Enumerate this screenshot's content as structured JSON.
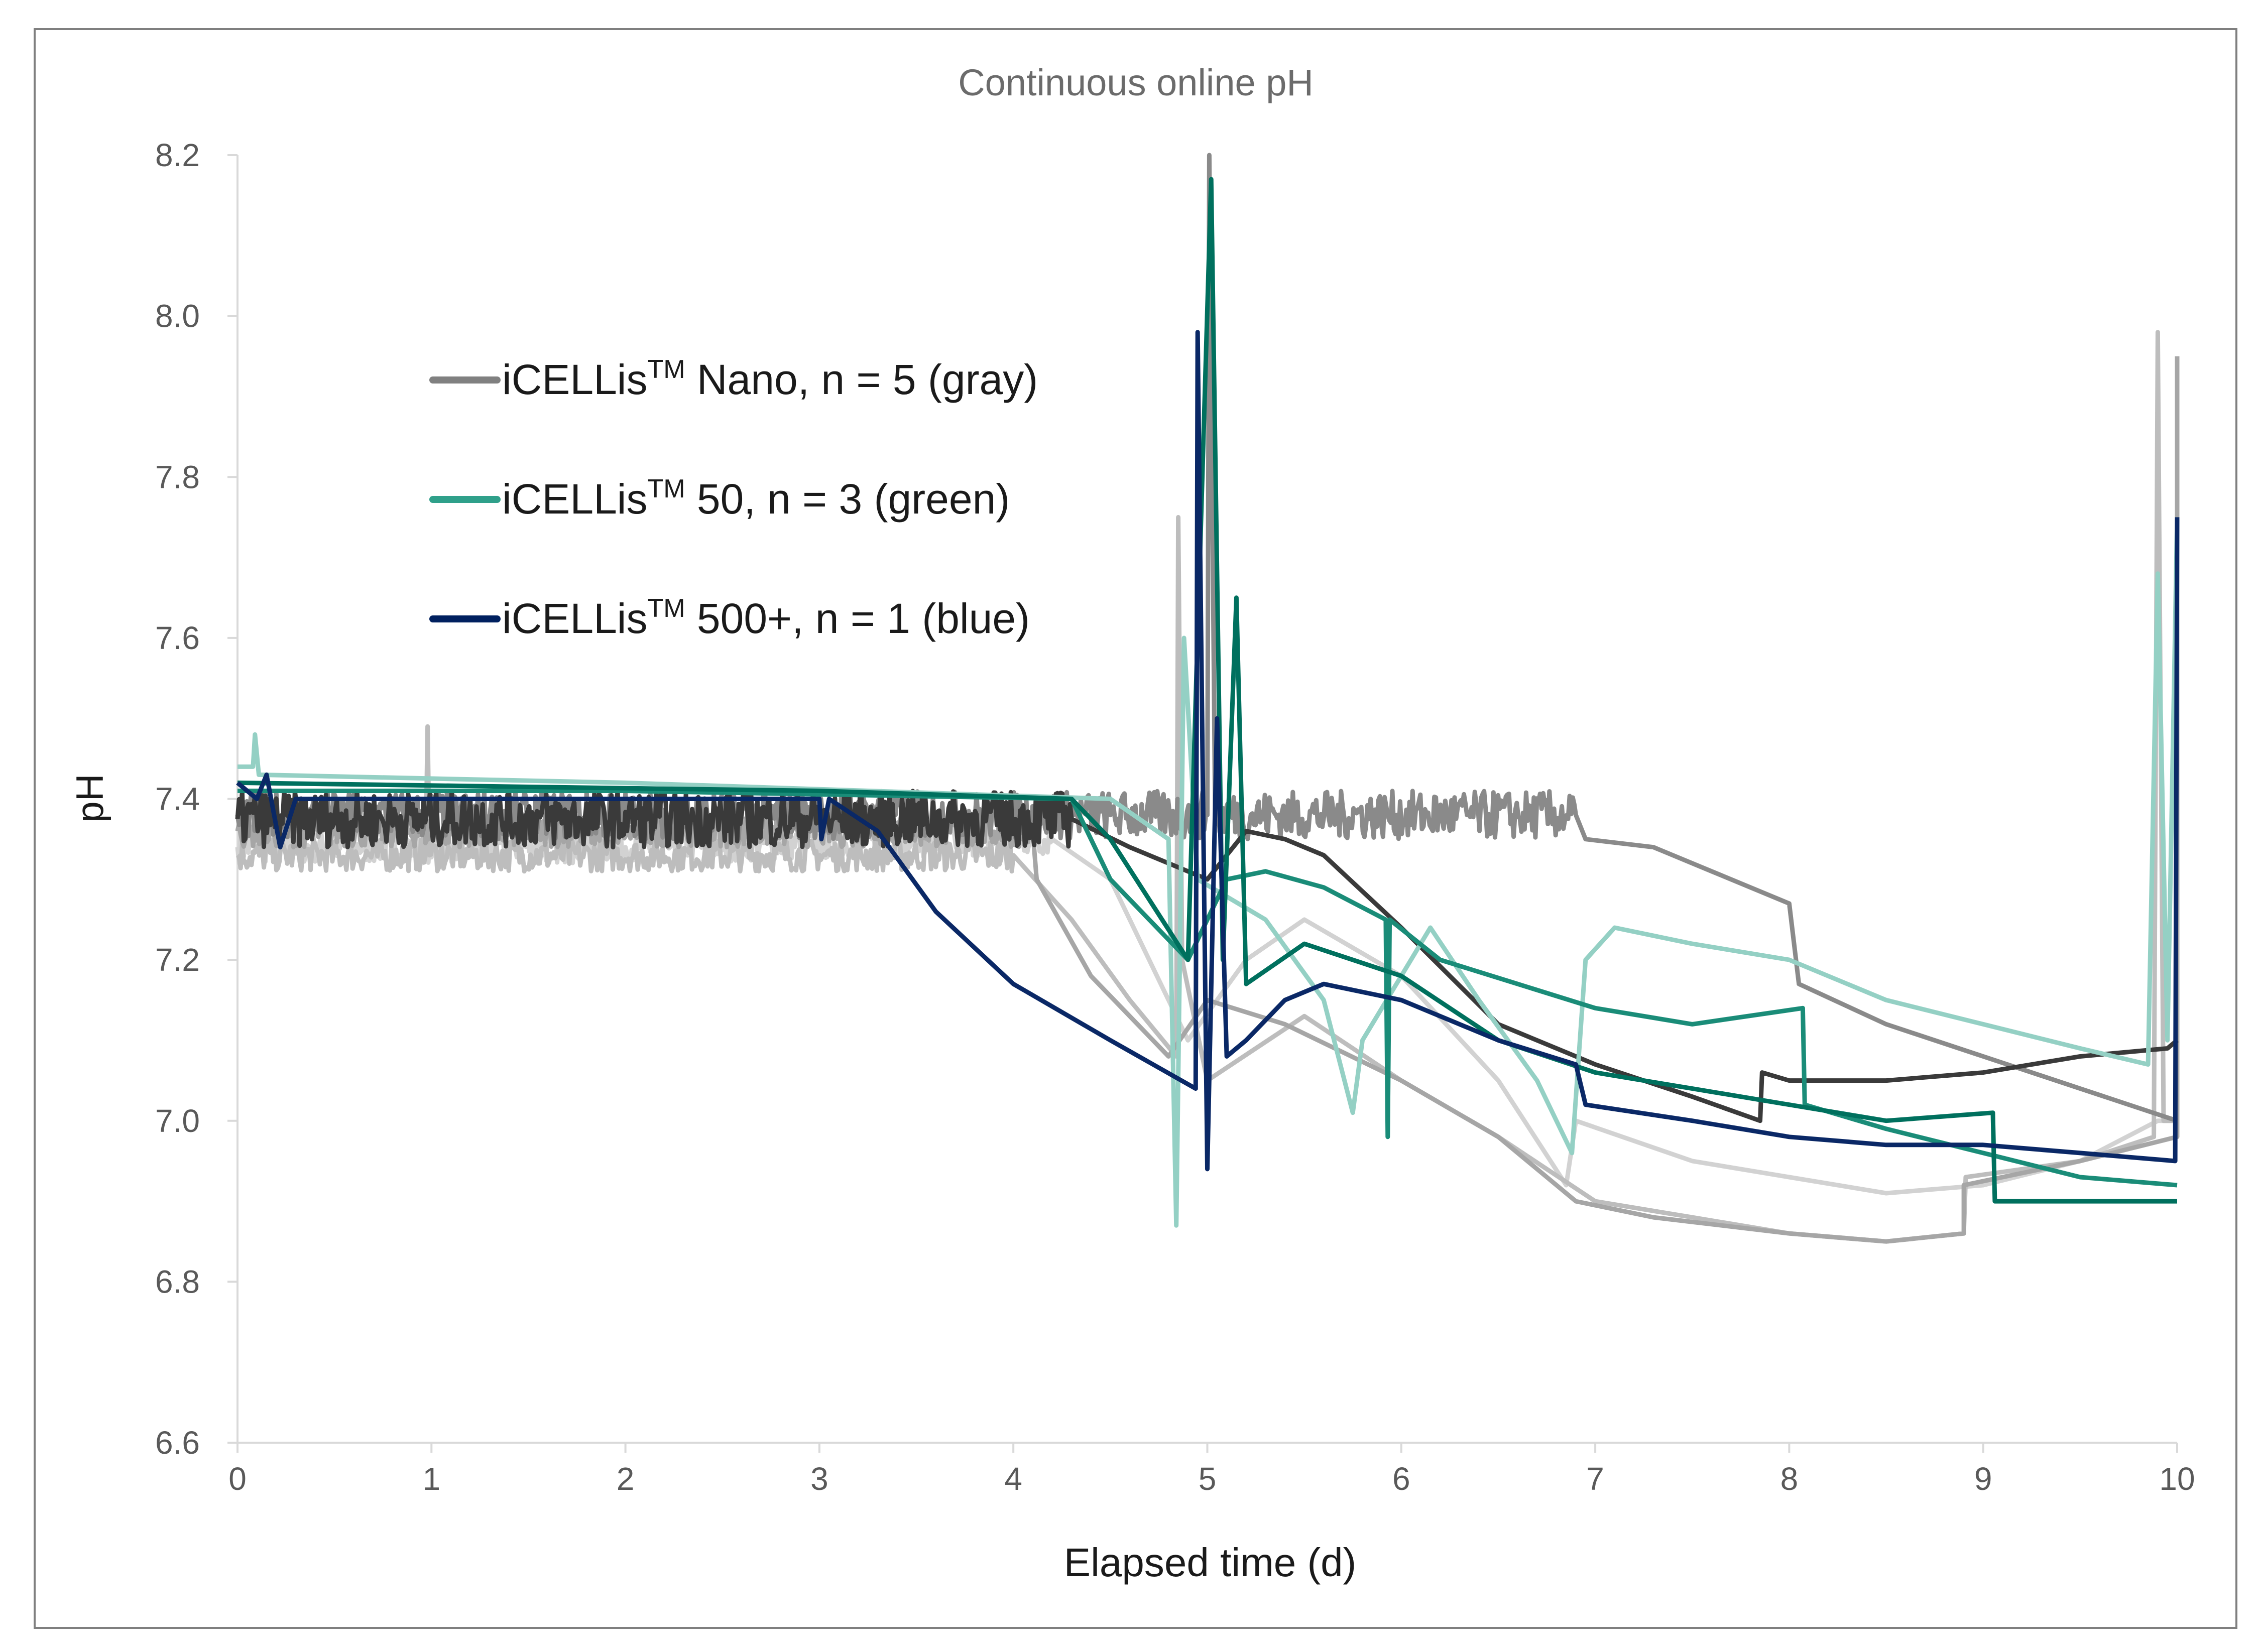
{
  "chart_data": {
    "type": "line",
    "title": "Continuous online pH",
    "xlabel": "Elapsed time (d)",
    "ylabel": "pH",
    "xlim": [
      0,
      10
    ],
    "ylim": [
      6.6,
      8.2
    ],
    "xticks": [
      "0",
      "1",
      "2",
      "3",
      "4",
      "5",
      "6",
      "7",
      "8",
      "9",
      "10"
    ],
    "yticks": [
      "6.6",
      "6.8",
      "7.0",
      "7.2",
      "7.4",
      "7.6",
      "7.8",
      "8.0",
      "8.2"
    ],
    "grid": false,
    "legend_position": "upper-left inside",
    "legend": [
      {
        "label_main": "iCELLis",
        "sup": "TM",
        "label_rest": " Nano, n = 5 (gray)",
        "color": "#808080"
      },
      {
        "label_main": "iCELLis",
        "sup": "TM",
        "label_rest": " 50, n = 3 (green)",
        "color": "#2fa08a"
      },
      {
        "label_main": "iCELLis",
        "sup": "TM",
        "label_rest": " 500+, n = 1 (blue)",
        "color": "#00205f"
      }
    ],
    "series": [
      {
        "group": "Nano",
        "color": "#d2d2d2",
        "noise": [
          0,
          4.3,
          0.02
        ],
        "points": [
          [
            0,
            7.34
          ],
          [
            2,
            7.34
          ],
          [
            4.2,
            7.35
          ],
          [
            4.5,
            7.3
          ],
          [
            4.9,
            7.1
          ],
          [
            5.2,
            7.2
          ],
          [
            5.5,
            7.25
          ],
          [
            6,
            7.18
          ],
          [
            6.5,
            7.05
          ],
          [
            6.85,
            6.92
          ],
          [
            6.9,
            7.0
          ],
          [
            7.5,
            6.95
          ],
          [
            8,
            6.93
          ],
          [
            8.5,
            6.91
          ],
          [
            9,
            6.92
          ],
          [
            9.5,
            6.95
          ],
          [
            9.9,
            7.0
          ],
          [
            10,
            7.0
          ]
        ]
      },
      {
        "group": "Nano",
        "color": "#bdbdbd",
        "noise": [
          0,
          4.0,
          0.02
        ],
        "points": [
          [
            0,
            7.33
          ],
          [
            0.97,
            7.33
          ],
          [
            0.98,
            7.49
          ],
          [
            0.99,
            7.33
          ],
          [
            3,
            7.33
          ],
          [
            4.0,
            7.33
          ],
          [
            4.3,
            7.25
          ],
          [
            4.6,
            7.15
          ],
          [
            4.84,
            7.08
          ],
          [
            4.85,
            7.75
          ],
          [
            4.87,
            7.2
          ],
          [
            5.0,
            7.05
          ],
          [
            5.5,
            7.13
          ],
          [
            6,
            7.05
          ],
          [
            6.5,
            6.98
          ],
          [
            7,
            6.9
          ],
          [
            7.5,
            6.88
          ],
          [
            8,
            6.86
          ],
          [
            8.5,
            6.85
          ],
          [
            8.9,
            6.86
          ],
          [
            8.91,
            6.93
          ],
          [
            9.5,
            6.95
          ],
          [
            9.88,
            6.98
          ],
          [
            9.9,
            7.98
          ],
          [
            9.93,
            7.0
          ],
          [
            10,
            7.0
          ]
        ]
      },
      {
        "group": "Nano",
        "color": "#a6a6a6",
        "noise": [
          0,
          4.1,
          0.02
        ],
        "points": [
          [
            0,
            7.36
          ],
          [
            4.1,
            7.36
          ],
          [
            4.12,
            7.3
          ],
          [
            4.4,
            7.18
          ],
          [
            4.8,
            7.08
          ],
          [
            5.0,
            7.15
          ],
          [
            5.4,
            7.12
          ],
          [
            6,
            7.05
          ],
          [
            6.5,
            6.98
          ],
          [
            6.9,
            6.9
          ],
          [
            7.3,
            6.88
          ],
          [
            8,
            6.86
          ],
          [
            8.5,
            6.85
          ],
          [
            8.9,
            6.86
          ],
          [
            8.9,
            6.92
          ],
          [
            9.5,
            6.95
          ],
          [
            10,
            6.98
          ],
          [
            10,
            7.95
          ]
        ]
      },
      {
        "group": "Nano",
        "color": "#8a8a8a",
        "noise": [
          0,
          6.9,
          0.03
        ],
        "points": [
          [
            0,
            7.38
          ],
          [
            3,
            7.38
          ],
          [
            4.5,
            7.38
          ],
          [
            5.0,
            7.38
          ],
          [
            5.01,
            8.2
          ],
          [
            5.04,
            7.38
          ],
          [
            6.9,
            7.38
          ],
          [
            6.95,
            7.35
          ],
          [
            7.3,
            7.34
          ],
          [
            7.6,
            7.31
          ],
          [
            8.0,
            7.27
          ],
          [
            8.05,
            7.17
          ],
          [
            8.5,
            7.12
          ],
          [
            9,
            7.08
          ],
          [
            9.5,
            7.04
          ],
          [
            10,
            7.0
          ]
        ]
      },
      {
        "group": "Nano",
        "color": "#3a3a3a",
        "noise": [
          0,
          4.3,
          0.035
        ],
        "points": [
          [
            0,
            7.375
          ],
          [
            3,
            7.375
          ],
          [
            4.3,
            7.375
          ],
          [
            4.6,
            7.34
          ],
          [
            5.0,
            7.3
          ],
          [
            5.2,
            7.36
          ],
          [
            5.4,
            7.35
          ],
          [
            5.6,
            7.33
          ],
          [
            6.0,
            7.24
          ],
          [
            6.5,
            7.12
          ],
          [
            7.0,
            7.07
          ],
          [
            7.5,
            7.03
          ],
          [
            7.85,
            7.0
          ],
          [
            7.86,
            7.06
          ],
          [
            8.0,
            7.05
          ],
          [
            8.5,
            7.05
          ],
          [
            9.0,
            7.06
          ],
          [
            9.5,
            7.08
          ],
          [
            9.95,
            7.09
          ],
          [
            10,
            7.1
          ]
        ]
      },
      {
        "group": "50",
        "color": "#94d0c4",
        "points": [
          [
            0,
            7.44
          ],
          [
            0.08,
            7.44
          ],
          [
            0.09,
            7.48
          ],
          [
            0.11,
            7.43
          ],
          [
            2,
            7.42
          ],
          [
            4.5,
            7.4
          ],
          [
            4.8,
            7.35
          ],
          [
            4.84,
            6.87
          ],
          [
            4.88,
            7.6
          ],
          [
            4.95,
            7.3
          ],
          [
            5.3,
            7.25
          ],
          [
            5.6,
            7.15
          ],
          [
            5.75,
            7.01
          ],
          [
            5.8,
            7.1
          ],
          [
            6.0,
            7.18
          ],
          [
            6.15,
            7.24
          ],
          [
            6.4,
            7.15
          ],
          [
            6.7,
            7.05
          ],
          [
            6.88,
            6.96
          ],
          [
            6.95,
            7.2
          ],
          [
            7.1,
            7.24
          ],
          [
            7.5,
            7.22
          ],
          [
            8,
            7.2
          ],
          [
            8.5,
            7.15
          ],
          [
            9,
            7.12
          ],
          [
            9.5,
            7.09
          ],
          [
            9.85,
            7.07
          ],
          [
            9.9,
            7.68
          ],
          [
            9.95,
            7.1
          ],
          [
            10,
            7.75
          ]
        ]
      },
      {
        "group": "50",
        "color": "#1a8c78",
        "points": [
          [
            0,
            7.41
          ],
          [
            2,
            7.41
          ],
          [
            4.3,
            7.4
          ],
          [
            4.5,
            7.3
          ],
          [
            4.9,
            7.2
          ],
          [
            5.1,
            7.3
          ],
          [
            5.3,
            7.31
          ],
          [
            5.6,
            7.29
          ],
          [
            5.92,
            7.25
          ],
          [
            5.93,
            6.98
          ],
          [
            5.94,
            7.25
          ],
          [
            6.2,
            7.2
          ],
          [
            6.6,
            7.17
          ],
          [
            7,
            7.14
          ],
          [
            7.5,
            7.12
          ],
          [
            8.07,
            7.14
          ],
          [
            8.08,
            7.02
          ],
          [
            8.5,
            6.99
          ],
          [
            9,
            6.96
          ],
          [
            9.5,
            6.93
          ],
          [
            10,
            6.92
          ]
        ]
      },
      {
        "group": "50",
        "color": "#00705e",
        "points": [
          [
            0,
            7.42
          ],
          [
            3,
            7.41
          ],
          [
            4.3,
            7.4
          ],
          [
            4.5,
            7.35
          ],
          [
            4.9,
            7.2
          ],
          [
            5.02,
            8.17
          ],
          [
            5.08,
            7.2
          ],
          [
            5.15,
            7.65
          ],
          [
            5.2,
            7.17
          ],
          [
            5.5,
            7.22
          ],
          [
            6,
            7.18
          ],
          [
            6.5,
            7.1
          ],
          [
            7,
            7.06
          ],
          [
            7.5,
            7.04
          ],
          [
            8,
            7.02
          ],
          [
            8.5,
            7.0
          ],
          [
            9.05,
            7.01
          ],
          [
            9.06,
            6.9
          ],
          [
            10,
            6.9
          ]
        ]
      },
      {
        "group": "500+",
        "color": "#0a2866",
        "points": [
          [
            0,
            7.42
          ],
          [
            0.1,
            7.4
          ],
          [
            0.15,
            7.43
          ],
          [
            0.22,
            7.34
          ],
          [
            0.3,
            7.4
          ],
          [
            1,
            7.4
          ],
          [
            2,
            7.4
          ],
          [
            3.0,
            7.4
          ],
          [
            3.01,
            7.35
          ],
          [
            3.05,
            7.4
          ],
          [
            3.3,
            7.36
          ],
          [
            3.6,
            7.26
          ],
          [
            4.0,
            7.17
          ],
          [
            4.5,
            7.1
          ],
          [
            4.94,
            7.04
          ],
          [
            4.95,
            7.98
          ],
          [
            5.0,
            6.94
          ],
          [
            5.05,
            7.5
          ],
          [
            5.1,
            7.08
          ],
          [
            5.2,
            7.1
          ],
          [
            5.4,
            7.15
          ],
          [
            5.6,
            7.17
          ],
          [
            6.0,
            7.15
          ],
          [
            6.5,
            7.1
          ],
          [
            6.9,
            7.07
          ],
          [
            6.95,
            7.02
          ],
          [
            7.5,
            7.0
          ],
          [
            8,
            6.98
          ],
          [
            8.5,
            6.97
          ],
          [
            9,
            6.97
          ],
          [
            9.5,
            6.96
          ],
          [
            9.99,
            6.95
          ],
          [
            10,
            7.75
          ]
        ]
      }
    ]
  }
}
